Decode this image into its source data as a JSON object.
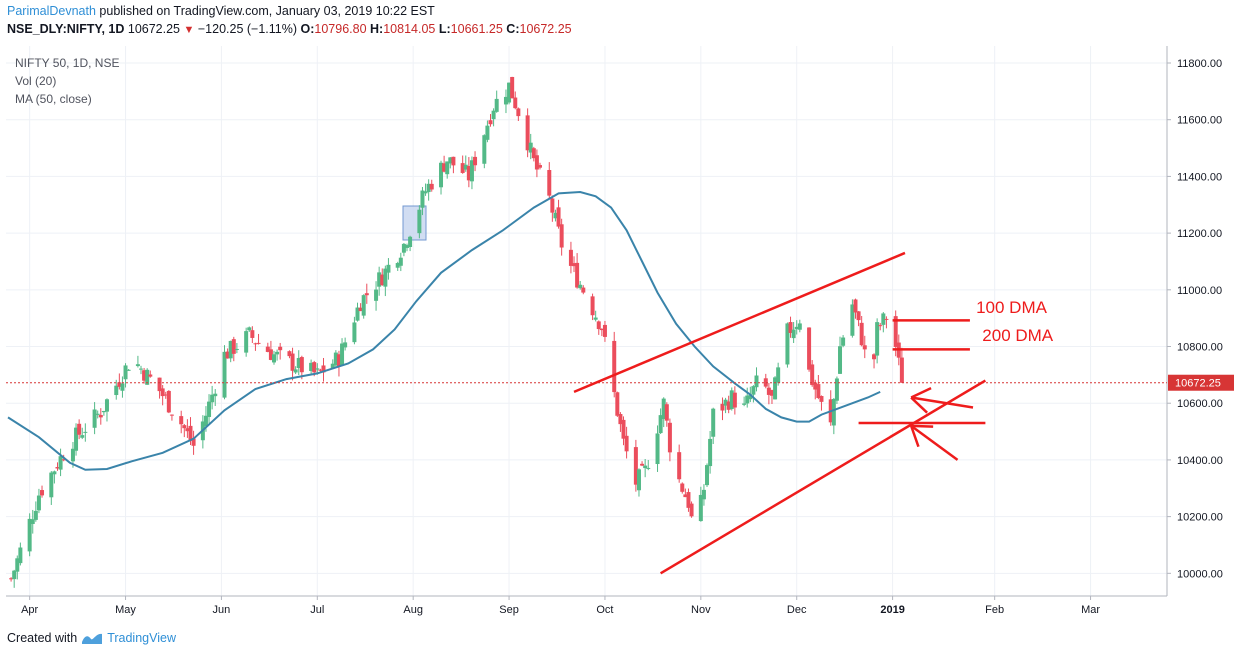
{
  "header": {
    "author": "ParimalDevnath",
    "published_text": " published on TradingView.com, January 03, 2019 10:22 EST",
    "symbol": "NSE_DLY:NIFTY, 1D",
    "last": "10672.25",
    "change": "−120.25 (−1.11%)",
    "o_label": "O:",
    "o": "10796.80",
    "h_label": "H:",
    "h": "10814.05",
    "l_label": "L:",
    "l": "10661.25",
    "c_label": "C:",
    "c": "10672.25"
  },
  "legend": {
    "title": "NIFTY 50, 1D, NSE",
    "vol": "Vol (20)",
    "ma": "MA (50, close)"
  },
  "footer": {
    "created": "Created with",
    "brand": "TradingView"
  },
  "colors": {
    "up": "#53b987",
    "down": "#eb4d5c",
    "ma": "#3a84aa",
    "annot": "#ee1c1c",
    "price_line": "#d73535",
    "grid": "#eef1f6"
  },
  "chart_data": {
    "type": "candlestick",
    "ylim": [
      9920,
      11860
    ],
    "y_ticks": [
      10000,
      10200,
      10400,
      10600,
      10800,
      11000,
      11200,
      11400,
      11600,
      11800
    ],
    "y_tick_labels": [
      "10000.00",
      "10200.00",
      "10400.00",
      "10600.00",
      "10800.00",
      "11000.00",
      "11200.00",
      "11400.00",
      "11600.00",
      "11800.00"
    ],
    "x_labels": [
      "Apr",
      "May",
      "Jun",
      "Jul",
      "Aug",
      "Sep",
      "Oct",
      "Nov",
      "Dec",
      "2019",
      "Feb",
      "Mar"
    ],
    "x_label_day": [
      7,
      38,
      69,
      100,
      131,
      162,
      193,
      224,
      255,
      286,
      319,
      350
    ],
    "last_price": 10672.25,
    "last_price_label": "10672.25",
    "close_anchors": [
      [
        1,
        9980
      ],
      [
        10,
        10280
      ],
      [
        20,
        10460
      ],
      [
        30,
        10570
      ],
      [
        40,
        10760
      ],
      [
        48,
        10660
      ],
      [
        55,
        10550
      ],
      [
        60,
        10450
      ],
      [
        64,
        10560
      ],
      [
        70,
        10770
      ],
      [
        78,
        10840
      ],
      [
        86,
        10770
      ],
      [
        94,
        10730
      ],
      [
        100,
        10700
      ],
      [
        107,
        10760
      ],
      [
        114,
        10960
      ],
      [
        121,
        11050
      ],
      [
        128,
        11160
      ],
      [
        135,
        11350
      ],
      [
        142,
        11460
      ],
      [
        149,
        11400
      ],
      [
        157,
        11650
      ],
      [
        162,
        11720
      ],
      [
        166,
        11600
      ],
      [
        170,
        11450
      ],
      [
        175,
        11320
      ],
      [
        180,
        11120
      ],
      [
        186,
        11000
      ],
      [
        192,
        10870
      ],
      [
        196,
        10630
      ],
      [
        199,
        10460
      ],
      [
        203,
        10320
      ],
      [
        206,
        10360
      ],
      [
        209,
        10480
      ],
      [
        212,
        10600
      ],
      [
        215,
        10380
      ],
      [
        220,
        10250
      ],
      [
        222,
        10130
      ],
      [
        225,
        10300
      ],
      [
        228,
        10560
      ],
      [
        234,
        10620
      ],
      [
        238,
        10580
      ],
      [
        243,
        10690
      ],
      [
        247,
        10610
      ],
      [
        252,
        10850
      ],
      [
        256,
        10900
      ],
      [
        259,
        10710
      ],
      [
        263,
        10590
      ],
      [
        266,
        10520
      ],
      [
        269,
        10800
      ],
      [
        273,
        10950
      ],
      [
        276,
        10830
      ],
      [
        279,
        10660
      ],
      [
        281,
        10860
      ],
      [
        285,
        10920
      ],
      [
        287,
        10800
      ],
      [
        289,
        10672.25
      ]
    ],
    "ma_points": [
      [
        0,
        10550
      ],
      [
        10,
        10480
      ],
      [
        20,
        10390
      ],
      [
        25,
        10365
      ],
      [
        32,
        10368
      ],
      [
        40,
        10395
      ],
      [
        50,
        10425
      ],
      [
        60,
        10475
      ],
      [
        70,
        10575
      ],
      [
        80,
        10650
      ],
      [
        90,
        10685
      ],
      [
        100,
        10705
      ],
      [
        110,
        10740
      ],
      [
        118,
        10790
      ],
      [
        125,
        10860
      ],
      [
        132,
        10960
      ],
      [
        140,
        11060
      ],
      [
        150,
        11140
      ],
      [
        160,
        11210
      ],
      [
        170,
        11290
      ],
      [
        178,
        11340
      ],
      [
        185,
        11345
      ],
      [
        190,
        11330
      ],
      [
        195,
        11290
      ],
      [
        200,
        11210
      ],
      [
        205,
        11100
      ],
      [
        210,
        10990
      ],
      [
        216,
        10880
      ],
      [
        222,
        10800
      ],
      [
        228,
        10730
      ],
      [
        235,
        10670
      ],
      [
        240,
        10630
      ],
      [
        245,
        10580
      ],
      [
        250,
        10550
      ],
      [
        255,
        10535
      ],
      [
        259,
        10535
      ],
      [
        263,
        10560
      ],
      [
        268,
        10580
      ],
      [
        273,
        10600
      ],
      [
        278,
        10620
      ],
      [
        282,
        10640
      ]
    ],
    "channel_upper": [
      [
        183,
        10640
      ],
      [
        290,
        11130
      ]
    ],
    "channel_lower": [
      [
        211,
        10000
      ],
      [
        316,
        10680
      ]
    ],
    "hline": [
      [
        275,
        10530
      ],
      [
        316,
        10530
      ]
    ],
    "pointer_lines": [
      [
        [
          286,
          10892
        ],
        [
          311,
          10892
        ]
      ],
      [
        [
          286,
          10790
        ],
        [
          311,
          10790
        ]
      ]
    ],
    "annotations": [
      {
        "text": "100 DMA",
        "day": 313,
        "price": 10918
      },
      {
        "text": "200 DMA",
        "day": 315,
        "price": 10820
      }
    ]
  }
}
